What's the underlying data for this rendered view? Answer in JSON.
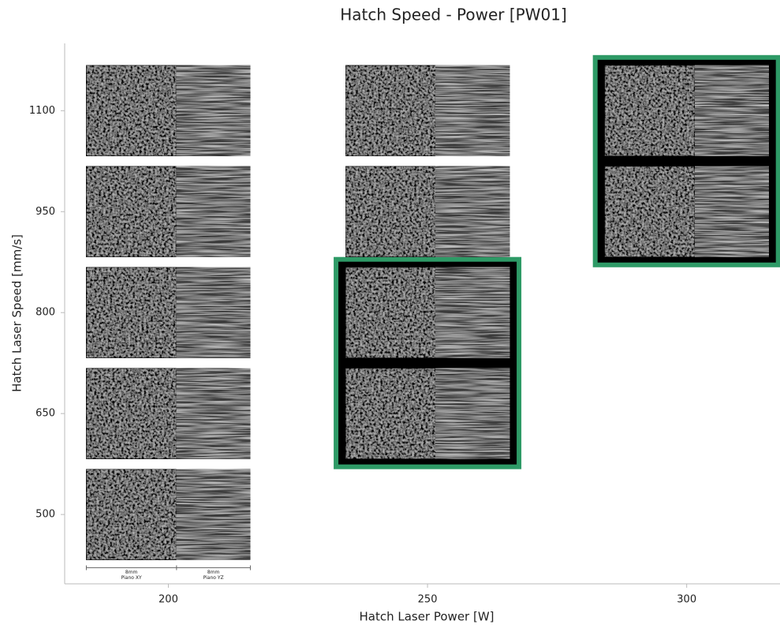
{
  "chart_data": {
    "type": "image-grid",
    "title": "Hatch Speed - Power [PW01]",
    "x_label": "Hatch Laser Power [W]",
    "y_label": "Hatch Laser Speed [mm/s]",
    "x": [
      200,
      200,
      200,
      200,
      200,
      250,
      250,
      250,
      250,
      300,
      300
    ],
    "y": [
      1100,
      950,
      800,
      650,
      500,
      1100,
      950,
      800,
      650,
      1100,
      950
    ],
    "xlim": [
      180,
      318
    ],
    "xticks": [
      200,
      250,
      300
    ],
    "ylim": [
      397,
      1200
    ],
    "yticks": [
      500,
      650,
      800,
      950,
      1100
    ],
    "highlights": [
      {
        "x": 250,
        "y": [
          800,
          650
        ]
      },
      {
        "x": 300,
        "y": [
          1100,
          950
        ]
      }
    ],
    "highlight_color": "#2e9a66",
    "scale_labels": [
      "8mm",
      "Piano XY",
      "8mm",
      "Piano YZ"
    ]
  }
}
